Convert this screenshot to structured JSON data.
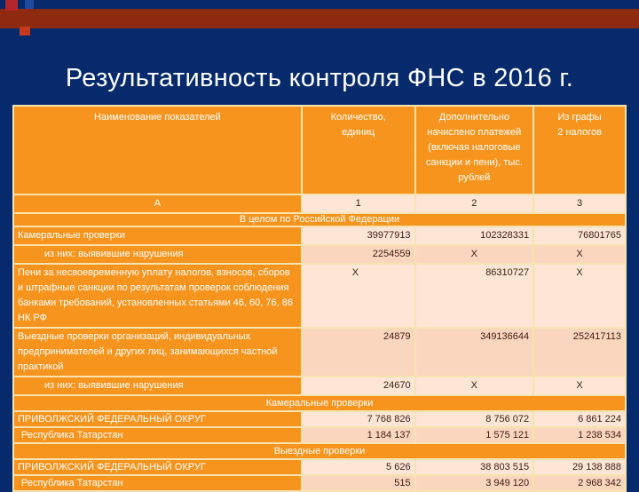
{
  "title": "Результативность контроля ФНС в 2016 г.",
  "headers": [
    "Наименование показателей",
    "Количество, единиц",
    "Дополнительно начислено платежей (включая налоговые санкции и пени), тыс. рублей",
    "Из графы 2 налогов"
  ],
  "col_index": [
    "А",
    "1",
    "2",
    "3"
  ],
  "section_rf": "В целом по Российской Федерации",
  "rows_rf": [
    {
      "label": "Камеральные проверки",
      "v": [
        "39977913",
        "102328331",
        "76801765"
      ]
    },
    {
      "label": "из них: выявившие нарушения",
      "v": [
        "2254559",
        "X",
        "X"
      ]
    },
    {
      "label": "Пени за несвоевременную уплату налогов, взносов, сборов и штрафные санкции по результатам проверок соблюдения банками требований, установленных статьями 46, 60, 76, 86 НК РФ",
      "v": [
        "X",
        "86310727",
        "X"
      ]
    },
    {
      "label": "Выездные проверки организаций, индивидуальных предпринимателей и других лиц, занимающихся частной практикой",
      "v": [
        "24879",
        "349136644",
        "252417113"
      ]
    },
    {
      "label": "из них: выявившие нарушения",
      "v": [
        "24670",
        "X",
        "X"
      ]
    }
  ],
  "section_kam": "Камеральные проверки",
  "rows_kam": [
    {
      "label": "ПРИВОЛЖСКИЙ ФЕДЕРАЛЬНЫЙ ОКРУГ",
      "v": [
        "7 768 826",
        "8 756 072",
        "6 861 224"
      ]
    },
    {
      "label": "Республика Татарстан",
      "v": [
        "1 184 137",
        "1 575 121",
        "1 238 534"
      ]
    }
  ],
  "section_vyezd": "Выездные проверки",
  "rows_vyezd": [
    {
      "label": "ПРИВОЛЖСКИЙ ФЕДЕРАЛЬНЫЙ ОКРУГ",
      "v": [
        "5 626",
        "38 803 515",
        "29 138 888"
      ]
    },
    {
      "label": "Республика Татарстан",
      "v": [
        "515",
        "3 949 120",
        "2 968 342"
      ]
    }
  ]
}
